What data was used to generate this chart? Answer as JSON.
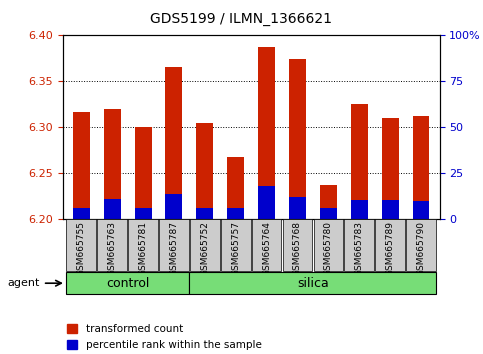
{
  "title": "GDS5199 / ILMN_1366621",
  "samples": [
    "GSM665755",
    "GSM665763",
    "GSM665781",
    "GSM665787",
    "GSM665752",
    "GSM665757",
    "GSM665764",
    "GSM665768",
    "GSM665780",
    "GSM665783",
    "GSM665789",
    "GSM665790"
  ],
  "red_values": [
    6.317,
    6.32,
    6.3,
    6.366,
    6.305,
    6.268,
    6.387,
    6.374,
    6.238,
    6.326,
    6.31,
    6.312
  ],
  "blue_values": [
    6.213,
    6.222,
    6.212,
    6.228,
    6.213,
    6.212,
    6.236,
    6.224,
    6.212,
    6.221,
    6.221,
    6.22
  ],
  "baseline": 6.2,
  "ymin": 6.2,
  "ymax": 6.4,
  "yticks_left": [
    6.2,
    6.25,
    6.3,
    6.35,
    6.4
  ],
  "yticks_right_vals": [
    0,
    25,
    50,
    75,
    100
  ],
  "yticks_right_labels": [
    "0",
    "25",
    "50",
    "75",
    "100%"
  ],
  "control_indices": [
    0,
    1,
    2,
    3
  ],
  "silica_indices": [
    4,
    5,
    6,
    7,
    8,
    9,
    10,
    11
  ],
  "bar_color_red": "#CC2200",
  "bar_color_blue": "#0000CC",
  "group_bg": "#77DD77",
  "legend_red_label": "transformed count",
  "legend_blue_label": "percentile rank within the sample",
  "agent_label": "agent",
  "control_label": "control",
  "silica_label": "silica",
  "bar_width": 0.55,
  "tick_label_color_left": "#CC2200",
  "tick_label_color_right": "#0000CC",
  "grid_color": "black",
  "sample_bg_color": "#CCCCCC",
  "border_color": "black"
}
